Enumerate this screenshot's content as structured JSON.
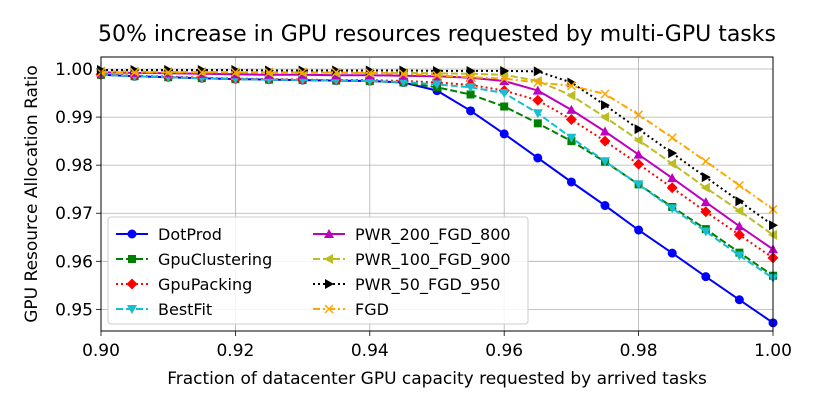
{
  "chart_data": {
    "type": "line",
    "title": "50% increase in GPU resources requested by multi-GPU tasks",
    "xlabel": "Fraction of datacenter GPU capacity requested by arrived tasks",
    "ylabel": "GPU Resource Allocation Ratio",
    "xlim": [
      0.9,
      1.0
    ],
    "ylim": [
      0.9455,
      1.0025
    ],
    "xticks": [
      0.9,
      0.92,
      0.94,
      0.96,
      0.98,
      1.0
    ],
    "xtick_labels": [
      "0.90",
      "0.92",
      "0.94",
      "0.96",
      "0.98",
      "1.00"
    ],
    "yticks": [
      0.95,
      0.96,
      0.97,
      0.98,
      0.99,
      1.0
    ],
    "ytick_labels": [
      "0.95",
      "0.96",
      "0.97",
      "0.98",
      "0.99",
      "1.00"
    ],
    "grid": true,
    "legend_position": "lower-left",
    "x": [
      0.9,
      0.905,
      0.91,
      0.915,
      0.92,
      0.925,
      0.93,
      0.935,
      0.94,
      0.945,
      0.95,
      0.955,
      0.96,
      0.965,
      0.97,
      0.975,
      0.98,
      0.985,
      0.99,
      0.995,
      1.0
    ],
    "series": [
      {
        "name": "DotProd",
        "color": "#0000ff",
        "dash": "solid",
        "marker": "circle",
        "values": [
          0.9988,
          0.9985,
          0.9983,
          0.9981,
          0.9979,
          0.9978,
          0.9977,
          0.9976,
          0.9975,
          0.9972,
          0.9955,
          0.9913,
          0.9865,
          0.9815,
          0.9765,
          0.9716,
          0.9665,
          0.9617,
          0.9568,
          0.952,
          0.9472
        ]
      },
      {
        "name": "GpuClustering",
        "color": "#008000",
        "dash": "dashed",
        "marker": "square",
        "values": [
          0.9988,
          0.9985,
          0.9983,
          0.9981,
          0.9979,
          0.9978,
          0.9977,
          0.9976,
          0.9975,
          0.9972,
          0.9962,
          0.9947,
          0.9922,
          0.9887,
          0.985,
          0.9807,
          0.976,
          0.9713,
          0.9667,
          0.9618,
          0.957
        ]
      },
      {
        "name": "GpuPacking",
        "color": "#ff0000",
        "dash": "dotted",
        "marker": "diamond",
        "values": [
          0.9989,
          0.9986,
          0.9984,
          0.9982,
          0.998,
          0.9979,
          0.9978,
          0.9977,
          0.9977,
          0.9975,
          0.9972,
          0.9967,
          0.9955,
          0.9935,
          0.9895,
          0.985,
          0.9802,
          0.9753,
          0.9703,
          0.9655,
          0.9607
        ]
      },
      {
        "name": "BestFit",
        "color": "#17becf",
        "dash": "dashed",
        "marker": "triangle-down",
        "values": [
          0.9988,
          0.9985,
          0.9983,
          0.9981,
          0.9979,
          0.9978,
          0.9977,
          0.9976,
          0.9975,
          0.9973,
          0.9968,
          0.9962,
          0.995,
          0.9908,
          0.9857,
          0.9808,
          0.976,
          0.971,
          0.9662,
          0.9612,
          0.9565
        ]
      },
      {
        "name": "PWR_200_FGD_800",
        "color": "#bf00bf",
        "dash": "solid",
        "marker": "triangle-up",
        "values": [
          0.9993,
          0.9992,
          0.9991,
          0.999,
          0.9989,
          0.9988,
          0.9988,
          0.9987,
          0.9987,
          0.9986,
          0.9985,
          0.9982,
          0.9975,
          0.9955,
          0.9915,
          0.987,
          0.9822,
          0.9773,
          0.9723,
          0.9673,
          0.9625
        ]
      },
      {
        "name": "PWR_100_FGD_900",
        "color": "#bcbd22",
        "dash": "dashed",
        "marker": "triangle-left",
        "values": [
          0.9995,
          0.9995,
          0.9994,
          0.9994,
          0.9993,
          0.9993,
          0.9993,
          0.9992,
          0.9992,
          0.9992,
          0.9991,
          0.999,
          0.9988,
          0.9975,
          0.9945,
          0.99,
          0.9852,
          0.9803,
          0.9753,
          0.9705,
          0.9655
        ]
      },
      {
        "name": "PWR_50_FGD_950",
        "color": "#000000",
        "dash": "dotted",
        "marker": "triangle-right",
        "values": [
          0.9998,
          0.9998,
          0.9998,
          0.9998,
          0.9998,
          0.9997,
          0.9997,
          0.9997,
          0.9997,
          0.9997,
          0.9996,
          0.9996,
          0.9996,
          0.9995,
          0.9972,
          0.9925,
          0.9875,
          0.9825,
          0.9775,
          0.9725,
          0.9675
        ]
      },
      {
        "name": "FGD",
        "color": "#ffa500",
        "dash": "dashdot",
        "marker": "x",
        "values": [
          0.9993,
          0.9993,
          0.9993,
          0.9993,
          0.9993,
          0.9993,
          0.9993,
          0.9993,
          0.9992,
          0.999,
          0.9987,
          0.9983,
          0.998,
          0.9972,
          0.9965,
          0.9948,
          0.9905,
          0.9857,
          0.9808,
          0.9758,
          0.9708
        ]
      }
    ]
  }
}
